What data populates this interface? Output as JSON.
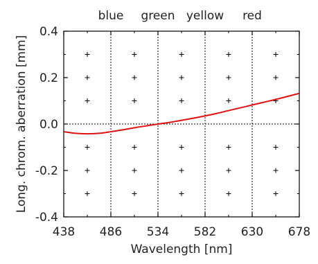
{
  "chart_data": {
    "type": "line",
    "title": "",
    "xlabel": "Wavelength [nm]",
    "ylabel": "Long. chrom. aberration [mm]",
    "xlim": [
      438,
      678
    ],
    "ylim": [
      -0.4,
      0.4
    ],
    "x_ticks": [
      438,
      486,
      534,
      582,
      630,
      678
    ],
    "x_tick_labels": [
      "438",
      "486",
      "534",
      "582",
      "630",
      "678"
    ],
    "y_ticks": [
      0.4,
      0.2,
      0.0,
      -0.2,
      -0.4
    ],
    "y_tick_labels": [
      "0.4",
      "0.2",
      "0.0",
      "-0.2",
      "-0.4"
    ],
    "grid": "dotted lines at x = 486, 534, 582, 630 and y = 0.0; plus markers elsewhere",
    "color_bands": [
      {
        "label": "blue",
        "x": 486
      },
      {
        "label": "green",
        "x": 534
      },
      {
        "label": "yellow",
        "x": 582
      },
      {
        "label": "red",
        "x": 630
      }
    ],
    "series": [
      {
        "color": "#e01010",
        "x": [
          438,
          450,
          462,
          474,
          486,
          498,
          510,
          522,
          534,
          546,
          558,
          570,
          582,
          594,
          606,
          618,
          630,
          642,
          654,
          666,
          678
        ],
        "y": [
          -0.033,
          -0.04,
          -0.042,
          -0.04,
          -0.033,
          -0.025,
          -0.016,
          -0.008,
          0.0,
          0.007,
          0.016,
          0.025,
          0.035,
          0.046,
          0.058,
          0.07,
          0.082,
          0.094,
          0.106,
          0.119,
          0.132
        ]
      }
    ]
  }
}
